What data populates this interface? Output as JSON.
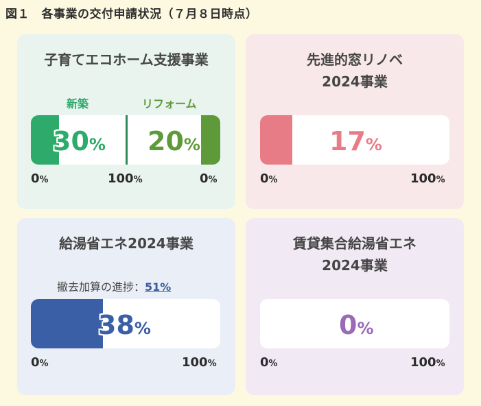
{
  "figure_title": "図１　各事業の交付申請状況（７月８日時点）",
  "colors": {
    "kosodate": "#2eaa6a",
    "reform": "#5f9a3a",
    "mado": "#e87c86",
    "kyuto": "#3a5fa6",
    "chintai": "#9a6ab6"
  },
  "chart_data": [
    {
      "type": "bar",
      "title": "子育てエコホーム支援事業",
      "series": [
        {
          "name": "新築",
          "value": 30,
          "unit": "%"
        },
        {
          "name": "リフォーム",
          "value": 20,
          "unit": "%"
        }
      ],
      "axis_labels": {
        "left": "0",
        "center": "100",
        "right": "0",
        "unit": "%"
      }
    },
    {
      "type": "bar",
      "title_line1": "先進的窓リノベ",
      "title_line2": "2024事業",
      "value": 17,
      "unit": "%",
      "axis_labels": {
        "min": "0",
        "max": "100",
        "unit": "%"
      }
    },
    {
      "type": "bar",
      "title": "給湯省エネ2024事業",
      "note_label": "撤去加算の進捗：",
      "note_value": "51%",
      "value": 38,
      "unit": "%",
      "axis_labels": {
        "min": "0",
        "max": "100",
        "unit": "%"
      }
    },
    {
      "type": "bar",
      "title_line1": "賃貸集合給湯省エネ",
      "title_line2": "2024事業",
      "value": 0,
      "unit": "%",
      "axis_labels": {
        "min": "0",
        "max": "100",
        "unit": "%"
      }
    }
  ]
}
